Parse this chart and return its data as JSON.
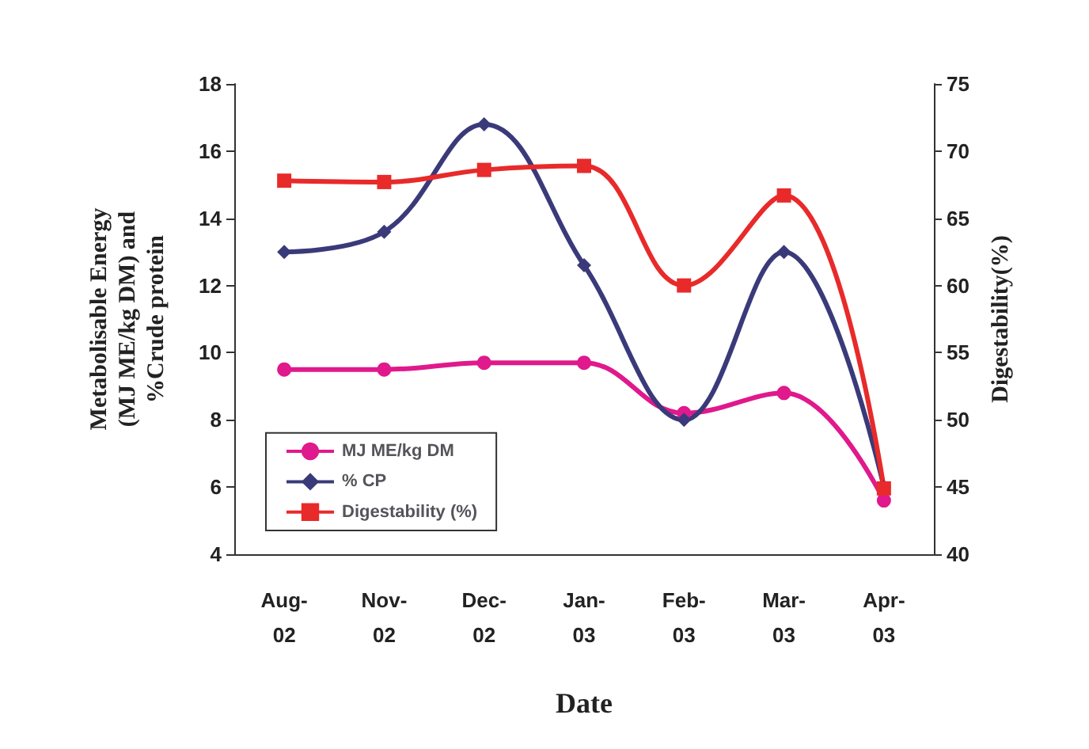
{
  "chart_data": {
    "type": "line",
    "xlabel": "Date",
    "ylabel": "Metabolisable Energy\n(MJ ME/kg DM) and\n%Crude protein",
    "y2label": "Digestability(%)",
    "categories": [
      "Aug-02",
      "Nov-02",
      "Dec-02",
      "Jan-03",
      "Feb-03",
      "Mar-03",
      "Apr-03"
    ],
    "series": [
      {
        "name": "MJ ME/kg DM",
        "color": "#e0198c",
        "marker": "circle",
        "values": [
          9.5,
          9.5,
          9.7,
          9.7,
          8.2,
          8.8,
          5.6
        ]
      },
      {
        "name": "% CP",
        "color": "#3a3a7a",
        "marker": "diamond",
        "values": [
          13.0,
          13.6,
          16.8,
          12.6,
          8.0,
          13.0,
          6.0
        ]
      },
      {
        "name": "Digestability (%)",
        "color": "#e82a2a",
        "marker": "square",
        "axis": "y2",
        "values": [
          67.8,
          67.7,
          68.6,
          68.9,
          60.0,
          66.7,
          44.9
        ]
      }
    ],
    "ylim": [
      4,
      18
    ],
    "yticks": [
      4,
      6,
      8,
      10,
      12,
      14,
      16,
      18
    ],
    "y2lim": [
      40,
      75
    ],
    "y2ticks": [
      40,
      45,
      50,
      55,
      60,
      65,
      70,
      75
    ],
    "grid": false,
    "legend": "bottom left",
    "line_style": "solid"
  }
}
